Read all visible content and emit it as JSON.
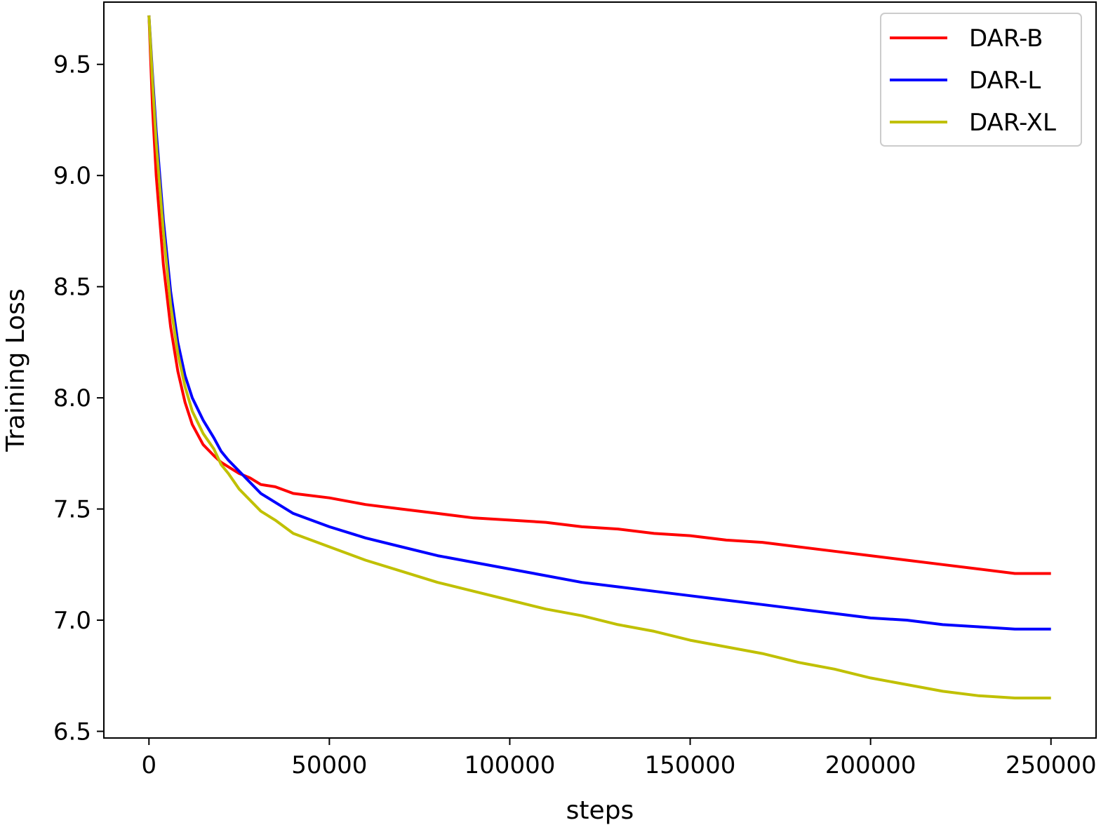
{
  "chart_data": {
    "type": "line",
    "xlabel": "steps",
    "ylabel": "Training Loss",
    "xlim": [
      -12500,
      262500
    ],
    "ylim": [
      6.47,
      9.78
    ],
    "xticks": [
      0,
      50000,
      100000,
      150000,
      200000,
      250000
    ],
    "xtick_labels": [
      "0",
      "50000",
      "100000",
      "150000",
      "200000",
      "250000"
    ],
    "yticks": [
      6.5,
      7.0,
      7.5,
      8.0,
      8.5,
      9.0,
      9.5
    ],
    "ytick_labels": [
      "6.5",
      "7.0",
      "7.5",
      "8.0",
      "8.5",
      "9.0",
      "9.5"
    ],
    "grid": false,
    "legend_position": "top-right",
    "series": [
      {
        "name": "DAR-B",
        "color": "#ff0000",
        "points": [
          [
            0,
            9.72
          ],
          [
            1000,
            9.3
          ],
          [
            2000,
            9.0
          ],
          [
            4000,
            8.6
          ],
          [
            6000,
            8.32
          ],
          [
            8000,
            8.12
          ],
          [
            10000,
            7.98
          ],
          [
            12000,
            7.88
          ],
          [
            15000,
            7.79
          ],
          [
            18000,
            7.74
          ],
          [
            20000,
            7.71
          ],
          [
            22000,
            7.69
          ],
          [
            25000,
            7.66
          ],
          [
            28000,
            7.64
          ],
          [
            31000,
            7.61
          ],
          [
            35000,
            7.6
          ],
          [
            40000,
            7.57
          ],
          [
            50000,
            7.55
          ],
          [
            60000,
            7.52
          ],
          [
            70000,
            7.5
          ],
          [
            80000,
            7.48
          ],
          [
            90000,
            7.46
          ],
          [
            100000,
            7.45
          ],
          [
            110000,
            7.44
          ],
          [
            120000,
            7.42
          ],
          [
            130000,
            7.41
          ],
          [
            140000,
            7.39
          ],
          [
            150000,
            7.38
          ],
          [
            160000,
            7.36
          ],
          [
            170000,
            7.35
          ],
          [
            180000,
            7.33
          ],
          [
            190000,
            7.31
          ],
          [
            200000,
            7.29
          ],
          [
            210000,
            7.27
          ],
          [
            220000,
            7.25
          ],
          [
            230000,
            7.23
          ],
          [
            240000,
            7.21
          ],
          [
            250000,
            7.21
          ]
        ]
      },
      {
        "name": "DAR-L",
        "color": "#0000ff",
        "points": [
          [
            0,
            9.72
          ],
          [
            1000,
            9.45
          ],
          [
            2000,
            9.2
          ],
          [
            4000,
            8.8
          ],
          [
            6000,
            8.48
          ],
          [
            8000,
            8.25
          ],
          [
            10000,
            8.1
          ],
          [
            12000,
            8.0
          ],
          [
            15000,
            7.9
          ],
          [
            18000,
            7.82
          ],
          [
            20000,
            7.76
          ],
          [
            22000,
            7.72
          ],
          [
            25000,
            7.67
          ],
          [
            28000,
            7.62
          ],
          [
            31000,
            7.57
          ],
          [
            35000,
            7.53
          ],
          [
            40000,
            7.48
          ],
          [
            50000,
            7.42
          ],
          [
            60000,
            7.37
          ],
          [
            70000,
            7.33
          ],
          [
            80000,
            7.29
          ],
          [
            90000,
            7.26
          ],
          [
            100000,
            7.23
          ],
          [
            110000,
            7.2
          ],
          [
            120000,
            7.17
          ],
          [
            130000,
            7.15
          ],
          [
            140000,
            7.13
          ],
          [
            150000,
            7.11
          ],
          [
            160000,
            7.09
          ],
          [
            170000,
            7.07
          ],
          [
            180000,
            7.05
          ],
          [
            190000,
            7.03
          ],
          [
            200000,
            7.01
          ],
          [
            210000,
            7.0
          ],
          [
            220000,
            6.98
          ],
          [
            230000,
            6.97
          ],
          [
            240000,
            6.96
          ],
          [
            250000,
            6.96
          ]
        ]
      },
      {
        "name": "DAR-XL",
        "color": "#c0c000",
        "points": [
          [
            0,
            9.72
          ],
          [
            1000,
            9.42
          ],
          [
            2000,
            9.15
          ],
          [
            4000,
            8.75
          ],
          [
            6000,
            8.42
          ],
          [
            8000,
            8.2
          ],
          [
            10000,
            8.05
          ],
          [
            12000,
            7.94
          ],
          [
            15000,
            7.84
          ],
          [
            18000,
            7.77
          ],
          [
            20000,
            7.7
          ],
          [
            22000,
            7.66
          ],
          [
            25000,
            7.59
          ],
          [
            28000,
            7.54
          ],
          [
            31000,
            7.49
          ],
          [
            35000,
            7.45
          ],
          [
            40000,
            7.39
          ],
          [
            50000,
            7.33
          ],
          [
            60000,
            7.27
          ],
          [
            70000,
            7.22
          ],
          [
            80000,
            7.17
          ],
          [
            90000,
            7.13
          ],
          [
            100000,
            7.09
          ],
          [
            110000,
            7.05
          ],
          [
            120000,
            7.02
          ],
          [
            130000,
            6.98
          ],
          [
            140000,
            6.95
          ],
          [
            150000,
            6.91
          ],
          [
            160000,
            6.88
          ],
          [
            170000,
            6.85
          ],
          [
            180000,
            6.81
          ],
          [
            190000,
            6.78
          ],
          [
            200000,
            6.74
          ],
          [
            210000,
            6.71
          ],
          [
            220000,
            6.68
          ],
          [
            230000,
            6.66
          ],
          [
            240000,
            6.65
          ],
          [
            250000,
            6.65
          ]
        ]
      }
    ]
  }
}
